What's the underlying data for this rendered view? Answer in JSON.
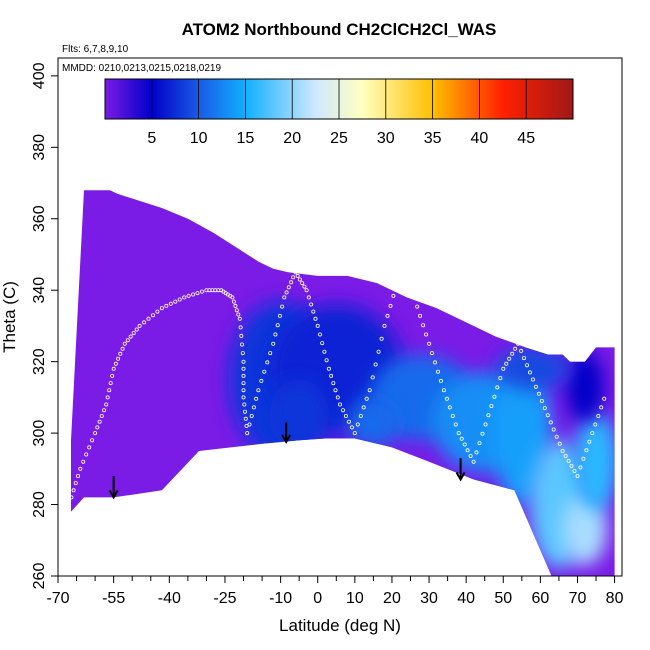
{
  "chart_data": {
    "type": "heatmap",
    "title": "ATOM2 Northbound CH2ClCH2Cl_WAS",
    "annotations": [
      "Flts: 6,7,8,9,10",
      "MMDD: 0210,0213,0215,0218,0219"
    ],
    "xlabel": "Latitude (deg N)",
    "ylabel": "Theta (C)",
    "xlim": [
      -70,
      82
    ],
    "ylim": [
      260,
      405
    ],
    "x_ticks": [
      -70,
      -55,
      -40,
      -25,
      -10,
      0,
      10,
      20,
      30,
      40,
      50,
      60,
      70,
      80
    ],
    "x_minor_ticks": [
      -65,
      -60,
      -50,
      -45,
      -35,
      -30,
      -20,
      -15,
      -5,
      5,
      15,
      25,
      35,
      45,
      55,
      65,
      75
    ],
    "y_ticks": [
      260,
      280,
      300,
      320,
      340,
      360,
      380,
      400
    ],
    "colorbar": {
      "range": [
        0,
        50
      ],
      "ticks": [
        5,
        10,
        15,
        20,
        25,
        30,
        35,
        40,
        45
      ],
      "colors": [
        "#7a1be6",
        "#0000c8",
        "#1a5ae6",
        "#10b0ff",
        "#cfe8ff",
        "#ffffc0",
        "#ffc000",
        "#ff2000",
        "#a01818"
      ],
      "stops": [
        0,
        0.1,
        0.2,
        0.3,
        0.45,
        0.55,
        0.7,
        0.85,
        1.0
      ]
    },
    "region_outline": [
      [
        -66.5,
        263
      ],
      [
        -66.5,
        298
      ],
      [
        -63,
        368
      ],
      [
        -56,
        368
      ],
      [
        -54,
        367
      ],
      [
        -48,
        365
      ],
      [
        -42,
        363
      ],
      [
        -35,
        360
      ],
      [
        -28,
        356
      ],
      [
        -22,
        352
      ],
      [
        -16,
        348
      ],
      [
        -12,
        346
      ],
      [
        -8,
        345
      ],
      [
        0,
        344
      ],
      [
        8,
        344
      ],
      [
        16,
        342
      ],
      [
        24,
        338
      ],
      [
        32,
        335
      ],
      [
        40,
        331
      ],
      [
        48,
        327
      ],
      [
        56,
        324
      ],
      [
        62,
        322
      ],
      [
        66,
        322
      ],
      [
        68,
        320
      ],
      [
        72,
        320
      ],
      [
        75,
        324
      ],
      [
        80,
        324
      ],
      [
        80,
        260
      ],
      [
        63,
        260
      ],
      [
        53,
        284
      ],
      [
        42,
        287
      ],
      [
        30,
        292
      ],
      [
        20,
        296
      ],
      [
        10,
        298.5
      ],
      [
        2,
        298.5
      ],
      [
        -5,
        298
      ],
      [
        -15,
        297
      ],
      [
        -32,
        295
      ],
      [
        -42,
        284
      ],
      [
        -55,
        282
      ],
      [
        -63,
        282
      ],
      [
        -66.5,
        278
      ]
    ],
    "field_blobs": [
      {
        "lat": -10,
        "theta": 315,
        "value": 8,
        "rx": 14,
        "ry": 22
      },
      {
        "lat": 5,
        "theta": 318,
        "value": 7,
        "rx": 18,
        "ry": 18
      },
      {
        "lat": -5,
        "theta": 305,
        "value": 8,
        "rx": 8,
        "ry": 10
      },
      {
        "lat": 28,
        "theta": 310,
        "value": 11,
        "rx": 14,
        "ry": 12
      },
      {
        "lat": 45,
        "theta": 303,
        "value": 13,
        "rx": 14,
        "ry": 14
      },
      {
        "lat": 55,
        "theta": 300,
        "value": 14,
        "rx": 8,
        "ry": 20
      },
      {
        "lat": 15,
        "theta": 303,
        "value": 11,
        "rx": 7,
        "ry": 7
      },
      {
        "lat": 65,
        "theta": 280,
        "value": 18,
        "rx": 8,
        "ry": 18
      },
      {
        "lat": 72,
        "theta": 273,
        "value": 21,
        "rx": 6,
        "ry": 10
      },
      {
        "lat": 75,
        "theta": 292,
        "value": 16,
        "rx": 6,
        "ry": 14
      },
      {
        "lat": 72,
        "theta": 313,
        "value": 5,
        "rx": 5,
        "ry": 10
      },
      {
        "lat": 58,
        "theta": 318,
        "value": 9,
        "rx": 10,
        "ry": 6
      }
    ],
    "arrows": [
      {
        "lat": -55,
        "theta_top": 288,
        "theta_tip": 282
      },
      {
        "lat": -8.5,
        "theta_top": 303,
        "theta_tip": 297.5
      },
      {
        "lat": 38.5,
        "theta_top": 293,
        "theta_tip": 287
      }
    ],
    "flight_track": [
      [
        -67,
        280
      ],
      [
        -64,
        290
      ],
      [
        -60,
        300
      ],
      [
        -57,
        308
      ],
      [
        -55,
        318
      ],
      [
        -52,
        325
      ],
      [
        -48,
        330
      ],
      [
        -42,
        335
      ],
      [
        -36,
        338
      ],
      [
        -30,
        340
      ],
      [
        -26,
        340
      ],
      [
        -23,
        338
      ],
      [
        -21,
        332
      ],
      [
        -20,
        320
      ],
      [
        -20,
        310
      ],
      [
        -19,
        300
      ],
      [
        -16,
        312
      ],
      [
        -12,
        325
      ],
      [
        -9,
        338
      ],
      [
        -6,
        345
      ],
      [
        -3,
        340
      ],
      [
        0,
        330
      ],
      [
        3,
        318
      ],
      [
        6,
        308
      ],
      [
        10,
        300
      ],
      [
        14,
        312
      ],
      [
        18,
        330
      ],
      [
        22,
        344
      ],
      [
        26,
        338
      ],
      [
        30,
        325
      ],
      [
        34,
        312
      ],
      [
        38,
        300
      ],
      [
        42,
        292
      ],
      [
        46,
        305
      ],
      [
        50,
        318
      ],
      [
        54,
        325
      ],
      [
        58,
        315
      ],
      [
        62,
        305
      ],
      [
        66,
        295
      ],
      [
        70,
        288
      ],
      [
        74,
        300
      ],
      [
        78,
        312
      ]
    ]
  }
}
